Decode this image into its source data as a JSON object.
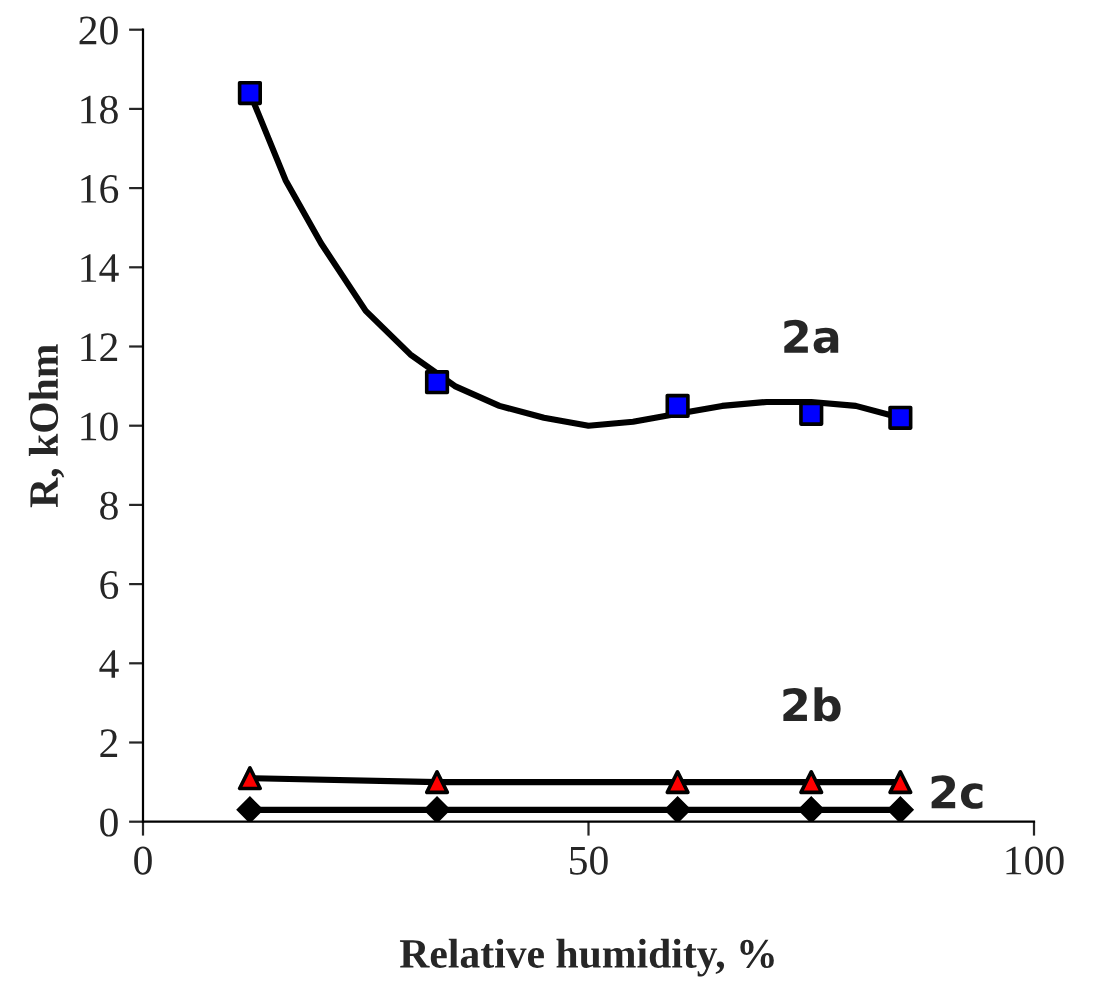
{
  "chart_data": {
    "type": "line",
    "xlabel": "Relative humidity, %",
    "ylabel": "R, kOhm",
    "xlim": [
      0,
      100
    ],
    "xticks": [
      0,
      50,
      100
    ],
    "ylim": [
      0,
      20
    ],
    "yticks": [
      0,
      2,
      4,
      6,
      8,
      10,
      12,
      14,
      16,
      18,
      20
    ],
    "grid": false,
    "legend": false,
    "series": [
      {
        "type": "line",
        "color": "#000000",
        "marker": "none",
        "x": [
          12,
          16,
          20,
          25,
          30,
          35,
          40,
          45,
          50,
          55,
          60,
          65,
          70,
          75,
          80,
          85
        ],
        "values": [
          18.4,
          16.2,
          14.6,
          12.9,
          11.8,
          11.0,
          10.5,
          10.2,
          10.0,
          10.1,
          10.3,
          10.5,
          10.6,
          10.6,
          10.5,
          10.2
        ]
      },
      {
        "type": "scatter",
        "name": "2a",
        "color": "#0000ff",
        "marker": "square",
        "x": [
          12,
          33,
          60,
          75,
          85
        ],
        "values": [
          18.4,
          11.1,
          10.5,
          10.3,
          10.2
        ]
      },
      {
        "type": "line",
        "color": "#000000",
        "marker": "none",
        "x": [
          12,
          33,
          60,
          75,
          85
        ],
        "values": [
          1.1,
          1.0,
          1.0,
          1.0,
          1.0
        ]
      },
      {
        "type": "scatter",
        "name": "2b",
        "color": "#ff0000",
        "marker": "triangle",
        "x": [
          12,
          33,
          60,
          75,
          85
        ],
        "values": [
          1.1,
          1.0,
          1.0,
          1.0,
          1.0
        ]
      },
      {
        "name": "2c",
        "color": "#000000",
        "marker": "diamond",
        "x": [
          12,
          33,
          60,
          75,
          85
        ],
        "values": [
          0.3,
          0.3,
          0.3,
          0.3,
          0.3
        ]
      }
    ]
  }
}
